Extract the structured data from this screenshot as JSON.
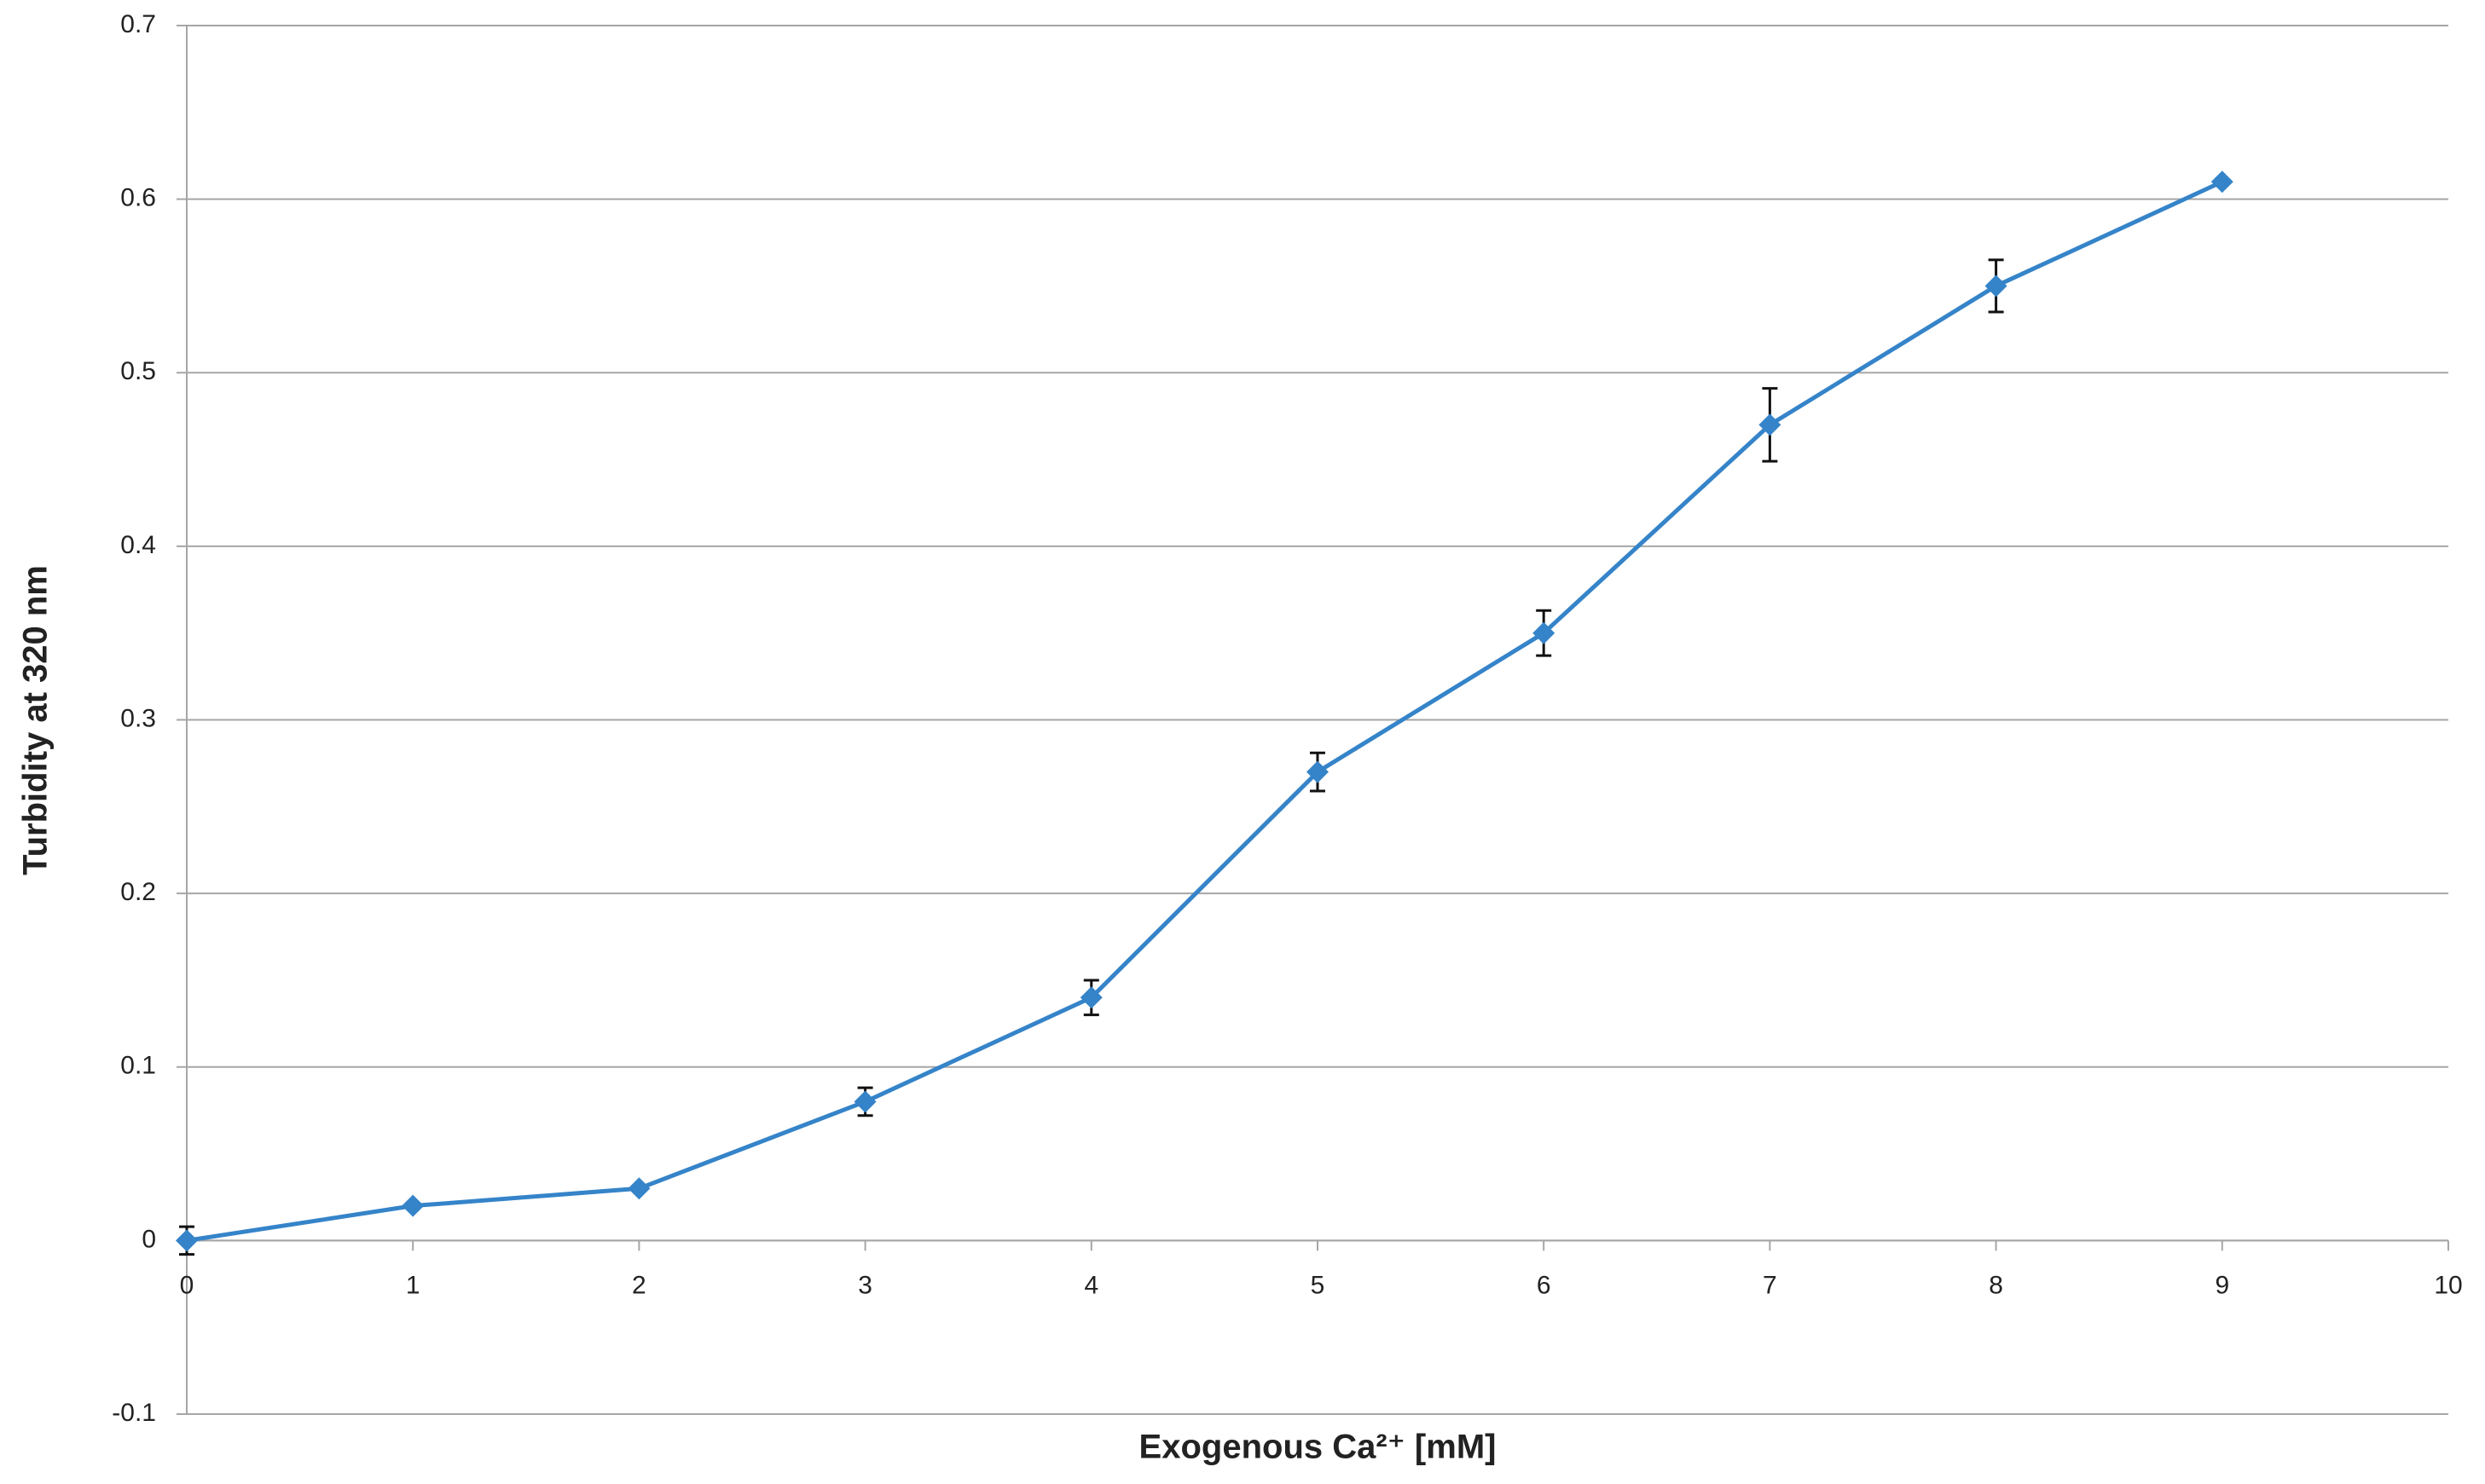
{
  "chart_data": {
    "type": "line",
    "x_label": "Exogenous Ca²⁺ [mM]",
    "y_label": "Turbidity at 320 nm",
    "x": [
      0,
      1,
      2,
      3,
      4,
      5,
      6,
      7,
      8,
      9
    ],
    "values": [
      0,
      0.02,
      0.03,
      0.08,
      0.14,
      0.27,
      0.35,
      0.47,
      0.55,
      0.61
    ],
    "errors": [
      0.008,
      0,
      0,
      0.008,
      0.01,
      0.011,
      0.013,
      0.021,
      0.015,
      0
    ],
    "color": "#3584c9",
    "error_color": "#111111",
    "grid_color": "#a6a6a6",
    "xlim": [
      0,
      10
    ],
    "xticks": [
      0,
      1,
      2,
      3,
      4,
      5,
      6,
      7,
      8,
      9,
      10
    ],
    "ylim": [
      -0.1,
      0.7
    ],
    "yticks": [
      -0.1,
      0,
      0.1,
      0.2,
      0.3,
      0.4,
      0.5,
      0.6,
      0.7
    ],
    "grid": true
  }
}
